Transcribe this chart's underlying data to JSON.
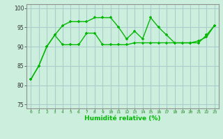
{
  "line1_x": [
    0,
    1,
    2,
    3,
    4,
    5,
    6,
    7,
    8,
    9,
    10,
    11,
    12,
    13,
    14,
    15,
    16,
    17,
    18,
    19,
    20,
    21,
    22,
    23
  ],
  "line1_y": [
    81.5,
    85,
    90,
    93,
    95.5,
    96.5,
    96.5,
    96.5,
    97.5,
    97.5,
    97.5,
    95,
    92,
    94,
    92,
    97.5,
    95,
    93,
    91,
    91,
    91,
    91.5,
    92.5,
    95.5
  ],
  "line2_x": [
    0,
    1,
    2,
    3,
    4,
    5,
    6,
    7,
    8,
    9,
    10,
    11,
    12,
    13,
    14,
    15,
    16,
    17,
    18,
    19,
    20,
    21,
    22,
    23
  ],
  "line2_y": [
    81.5,
    85,
    90,
    93,
    90.5,
    90.5,
    90.5,
    93.5,
    93.5,
    90.5,
    90.5,
    90.5,
    90.5,
    91,
    91,
    91,
    91,
    91,
    91,
    91,
    91,
    91,
    93,
    95.5
  ],
  "line_color": "#00bb00",
  "bg_color": "#cceedd",
  "grid_color": "#aacccc",
  "xlabel": "Humidité relative (%)",
  "ylim": [
    74,
    101
  ],
  "yticks": [
    75,
    80,
    85,
    90,
    95,
    100
  ],
  "xticks": [
    0,
    1,
    2,
    3,
    4,
    5,
    6,
    7,
    8,
    9,
    10,
    11,
    12,
    13,
    14,
    15,
    16,
    17,
    18,
    19,
    20,
    21,
    22,
    23
  ]
}
